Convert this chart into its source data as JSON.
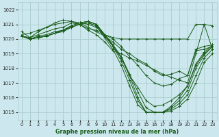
{
  "title": "Graphe pression niveau de la mer (hPa)",
  "bg_color": "#cce8ee",
  "grid_color": "#aacccc",
  "line_color": "#1a5c1a",
  "ylim": [
    1014.5,
    1022.5
  ],
  "yticks": [
    1015,
    1016,
    1017,
    1018,
    1019,
    1020,
    1021,
    1022
  ],
  "xlim": [
    -0.5,
    23.5
  ],
  "xticks": [
    0,
    1,
    2,
    3,
    4,
    5,
    6,
    7,
    8,
    9,
    10,
    11,
    12,
    13,
    14,
    15,
    16,
    17,
    18,
    19,
    20,
    21,
    22,
    23
  ],
  "curves": [
    [
      1020.2,
      1020.1,
      1020.3,
      1020.5,
      1020.7,
      1020.8,
      1021.1,
      1021.0,
      1020.7,
      1020.6,
      1020.3,
      1020.1,
      1020.0,
      1020.0,
      1020.0,
      1020.0,
      1020.0,
      1020.0,
      1020.0,
      1020.0,
      1020.0,
      1021.0,
      1021.0,
      1020.9
    ],
    [
      1020.2,
      1020.0,
      1020.2,
      1020.3,
      1020.5,
      1020.6,
      1020.9,
      1021.1,
      1021.0,
      1020.8,
      1020.3,
      1020.0,
      1019.5,
      1018.8,
      1018.2,
      1017.5,
      1017.0,
      1016.8,
      1016.9,
      1017.3,
      1017.5,
      1019.2,
      1019.3,
      1019.5
    ],
    [
      1020.2,
      1020.0,
      1020.1,
      1020.2,
      1020.4,
      1020.5,
      1020.8,
      1021.0,
      1021.1,
      1020.9,
      1020.2,
      1019.5,
      1018.7,
      1017.5,
      1016.7,
      1015.8,
      1015.4,
      1015.5,
      1015.8,
      1016.2,
      1016.8,
      1018.2,
      1019.0,
      1019.5
    ],
    [
      1020.2,
      1020.0,
      1020.1,
      1020.2,
      1020.4,
      1020.6,
      1020.9,
      1021.1,
      1021.2,
      1021.0,
      1020.3,
      1019.6,
      1018.8,
      1017.6,
      1016.4,
      1015.3,
      1015.0,
      1015.0,
      1015.4,
      1016.0,
      1016.8,
      1018.3,
      1019.1,
      1019.6
    ],
    [
      1020.2,
      1020.0,
      1020.1,
      1020.2,
      1020.4,
      1020.6,
      1020.9,
      1021.1,
      1021.2,
      1021.0,
      1020.3,
      1019.6,
      1018.8,
      1017.5,
      1016.0,
      1015.0,
      1015.0,
      1015.0,
      1015.3,
      1015.8,
      1016.5,
      1018.0,
      1018.9,
      1019.5
    ],
    [
      1020.2,
      1020.0,
      1020.1,
      1020.2,
      1020.4,
      1020.6,
      1020.9,
      1021.1,
      1021.2,
      1021.0,
      1020.3,
      1019.5,
      1018.5,
      1017.2,
      1015.8,
      1015.0,
      1015.0,
      1015.0,
      1015.2,
      1015.6,
      1016.2,
      1017.5,
      1018.7,
      1019.3
    ],
    [
      1020.2,
      1020.0,
      1020.1,
      1020.2,
      1020.4,
      1020.6,
      1020.8,
      1021.0,
      1021.1,
      1020.9,
      1020.1,
      1019.3,
      1018.2,
      1016.8,
      1015.5,
      1015.0,
      1015.0,
      1015.0,
      1015.1,
      1015.4,
      1015.9,
      1017.0,
      1018.4,
      1019.0
    ]
  ],
  "top_curve": [
    1020.3,
    1020.4,
    1020.6,
    1020.8,
    1021.0,
    1021.1,
    1021.2,
    1021.1,
    1020.8,
    1020.5,
    1020.2,
    1019.8,
    1019.3,
    1019.0,
    1018.6,
    1018.3,
    1017.8,
    1017.5,
    1017.6,
    1017.8,
    1017.5,
    1019.3,
    1019.5,
    1019.6
  ],
  "zigzag_curve": [
    1020.5,
    1020.1,
    1020.5,
    1020.8,
    1021.1,
    1021.3,
    1021.2,
    1021.0,
    1020.6,
    1020.3,
    1019.8,
    1019.2,
    1019.0,
    1018.7,
    1018.5,
    1018.2,
    1017.9,
    1017.6,
    1017.4,
    1017.2,
    1017.0,
    1019.0,
    1021.0,
    1019.3
  ]
}
